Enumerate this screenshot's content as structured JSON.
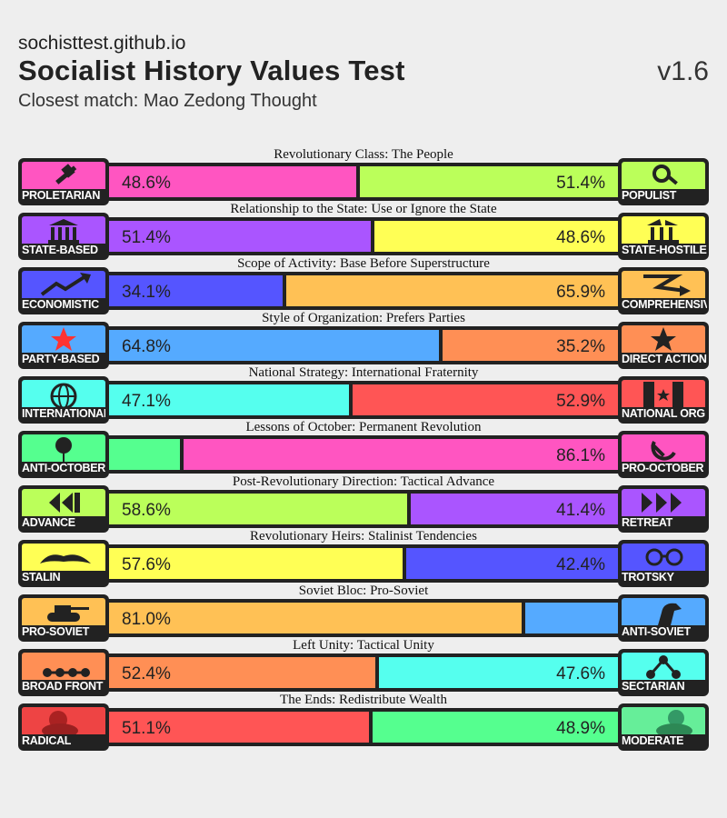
{
  "header": {
    "site": "sochisttest.github.io",
    "title": "Socialist History Values Test",
    "version": "v1.6",
    "closest_match": "Closest match: Mao Zedong Thought"
  },
  "chart_data": {
    "type": "bar",
    "title": "Socialist History Values Test",
    "axes": [
      {
        "label": "Revolutionary Class: The People",
        "left": {
          "name": "PROLETARIAN",
          "value": 48.6,
          "text": "48.6%",
          "color": "#ff55c1",
          "icon": "hammer-icon"
        },
        "right": {
          "name": "POPULIST",
          "value": 51.4,
          "text": "51.4%",
          "color": "#bbff5a",
          "icon": "magnifier-icon"
        }
      },
      {
        "label": "Relationship to the State: Use or Ignore the State",
        "left": {
          "name": "STATE-BASED",
          "value": 51.4,
          "text": "51.4%",
          "color": "#aa55ff",
          "icon": "government-building-icon"
        },
        "right": {
          "name": "STATE-HOSTILE",
          "value": 48.6,
          "text": "48.6%",
          "color": "#ffff55",
          "icon": "broken-building-icon"
        }
      },
      {
        "label": "Scope of Activity: Base Before Superstructure",
        "left": {
          "name": "ECONOMISTIC",
          "value": 34.1,
          "text": "34.1%",
          "color": "#5555ff",
          "icon": "rising-chart-icon"
        },
        "right": {
          "name": "COMPREHENSIVE",
          "value": 65.9,
          "text": "65.9%",
          "color": "#ffc155",
          "icon": "crossing-arrows-icon"
        }
      },
      {
        "label": "Style of Organization: Prefers Parties",
        "left": {
          "name": "PARTY-BASED",
          "value": 64.8,
          "text": "64.8%",
          "color": "#55aaff",
          "icon": "red-star-icon"
        },
        "right": {
          "name": "DIRECT ACTION",
          "value": 35.2,
          "text": "35.2%",
          "color": "#ff8f55",
          "icon": "black-star-icon"
        }
      },
      {
        "label": "National Strategy: International Fraternity",
        "left": {
          "name": "INTERNATIONAL",
          "value": 47.1,
          "text": "47.1%",
          "color": "#55ffee",
          "icon": "globe-icon"
        },
        "right": {
          "name": "NATIONAL ORG",
          "value": 52.9,
          "text": "52.9%",
          "color": "#ff5555",
          "icon": "flag-star-icon"
        }
      },
      {
        "label": "Lessons of October: Permanent Revolution",
        "left": {
          "name": "ANTI-OCTOBER",
          "value": 13.9,
          "text": "",
          "color": "#55ff8f",
          "icon": "rose-icon"
        },
        "right": {
          "name": "PRO-OCTOBER",
          "value": 86.1,
          "text": "86.1%",
          "color": "#ff55c1",
          "icon": "hammer-sickle-icon"
        }
      },
      {
        "label": "Post-Revolutionary Direction: Tactical Advance",
        "left": {
          "name": "ADVANCE",
          "value": 58.6,
          "text": "58.6%",
          "color": "#bbff5a",
          "icon": "rewind-icon"
        },
        "right": {
          "name": "RETREAT",
          "value": 41.4,
          "text": "41.4%",
          "color": "#aa55ff",
          "icon": "fast-forward-icon"
        }
      },
      {
        "label": "Revolutionary Heirs: Stalinist Tendencies",
        "left": {
          "name": "STALIN",
          "value": 57.6,
          "text": "57.6%",
          "color": "#ffff55",
          "icon": "mustache-icon"
        },
        "right": {
          "name": "TROTSKY",
          "value": 42.4,
          "text": "42.4%",
          "color": "#5555ff",
          "icon": "glasses-icon"
        }
      },
      {
        "label": "Soviet Bloc: Pro-Soviet",
        "left": {
          "name": "PRO-SOVIET",
          "value": 81.0,
          "text": "81.0%",
          "color": "#ffc155",
          "icon": "tank-icon"
        },
        "right": {
          "name": "ANTI-SOVIET",
          "value": 19.0,
          "text": "",
          "color": "#55aaff",
          "icon": "horse-icon"
        }
      },
      {
        "label": "Left Unity: Tactical Unity",
        "left": {
          "name": "BROAD FRONT",
          "value": 52.4,
          "text": "52.4%",
          "color": "#ff8f55",
          "icon": "chain-dots-icon"
        },
        "right": {
          "name": "SECTARIAN",
          "value": 47.6,
          "text": "47.6%",
          "color": "#55ffee",
          "icon": "hierarchy-icon"
        }
      },
      {
        "label": "The Ends: Redistribute Wealth",
        "left": {
          "name": "RADICAL",
          "value": 51.1,
          "text": "51.1%",
          "color": "#ff5555",
          "icon": "portrait-red-icon"
        },
        "right": {
          "name": "MODERATE",
          "value": 48.9,
          "text": "48.9%",
          "color": "#55ff8f",
          "icon": "portrait-green-icon"
        }
      }
    ]
  }
}
